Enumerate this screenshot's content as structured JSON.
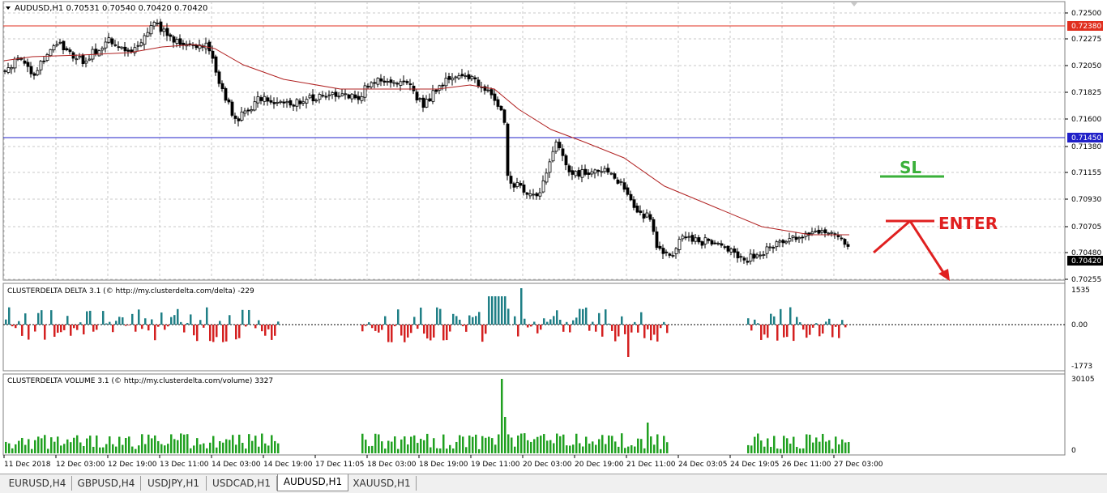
{
  "main_chart": {
    "header": "AUDUSD,H1  0.70531 0.70540 0.70420 0.70420",
    "price_axis_labels": [
      "0.72500",
      "0.72275",
      "0.72050",
      "0.71825",
      "0.71600",
      "0.71380",
      "0.71155",
      "0.70930",
      "0.70705",
      "0.70480",
      "0.70255"
    ],
    "resistance_level": "0.72380",
    "support_level": "0.71450",
    "current_price": "0.70420",
    "colors": {
      "resistance": "#e03020",
      "support": "#2020c8",
      "moving_average": "#b02020",
      "candles": "#000000"
    }
  },
  "annotations": {
    "sl_label": "SL",
    "enter_label": "ENTER",
    "colors": {
      "sl": "#3ab03a",
      "enter": "#e02020"
    }
  },
  "delta_indicator": {
    "title": "CLUSTERDELTA DELTA 3.1 (© http://my.clusterdelta.com/delta) -229",
    "axis_labels": [
      "1535",
      "0.00",
      "-1773"
    ],
    "colors": {
      "positive": "#1f7f86",
      "negative": "#d42020"
    }
  },
  "volume_indicator": {
    "title": "CLUSTERDELTA VOLUME 3.1 (© http://my.clusterdelta.com/volume) 3327",
    "axis_labels": [
      "30105",
      "0"
    ],
    "colors": {
      "bars": "#20a020"
    }
  },
  "time_axis": [
    "11 Dec 2018",
    "12 Dec 03:00",
    "12 Dec 19:00",
    "13 Dec 11:00",
    "14 Dec 03:00",
    "14 Dec 19:00",
    "17 Dec 11:05",
    "18 Dec 03:00",
    "18 Dec 19:00",
    "19 Dec 11:00",
    "20 Dec 03:00",
    "20 Dec 19:00",
    "21 Dec 11:00",
    "24 Dec 03:05",
    "24 Dec 19:05",
    "26 Dec 11:00",
    "27 Dec 03:00"
  ],
  "tabs": [
    {
      "label": "EURUSD,H4",
      "active": false
    },
    {
      "label": "GBPUSD,H4",
      "active": false
    },
    {
      "label": "USDJPY,H1",
      "active": false
    },
    {
      "label": "USDCAD,H1",
      "active": false
    },
    {
      "label": "AUDUSD,H1",
      "active": true
    },
    {
      "label": "XAUUSD,H1",
      "active": false
    }
  ]
}
